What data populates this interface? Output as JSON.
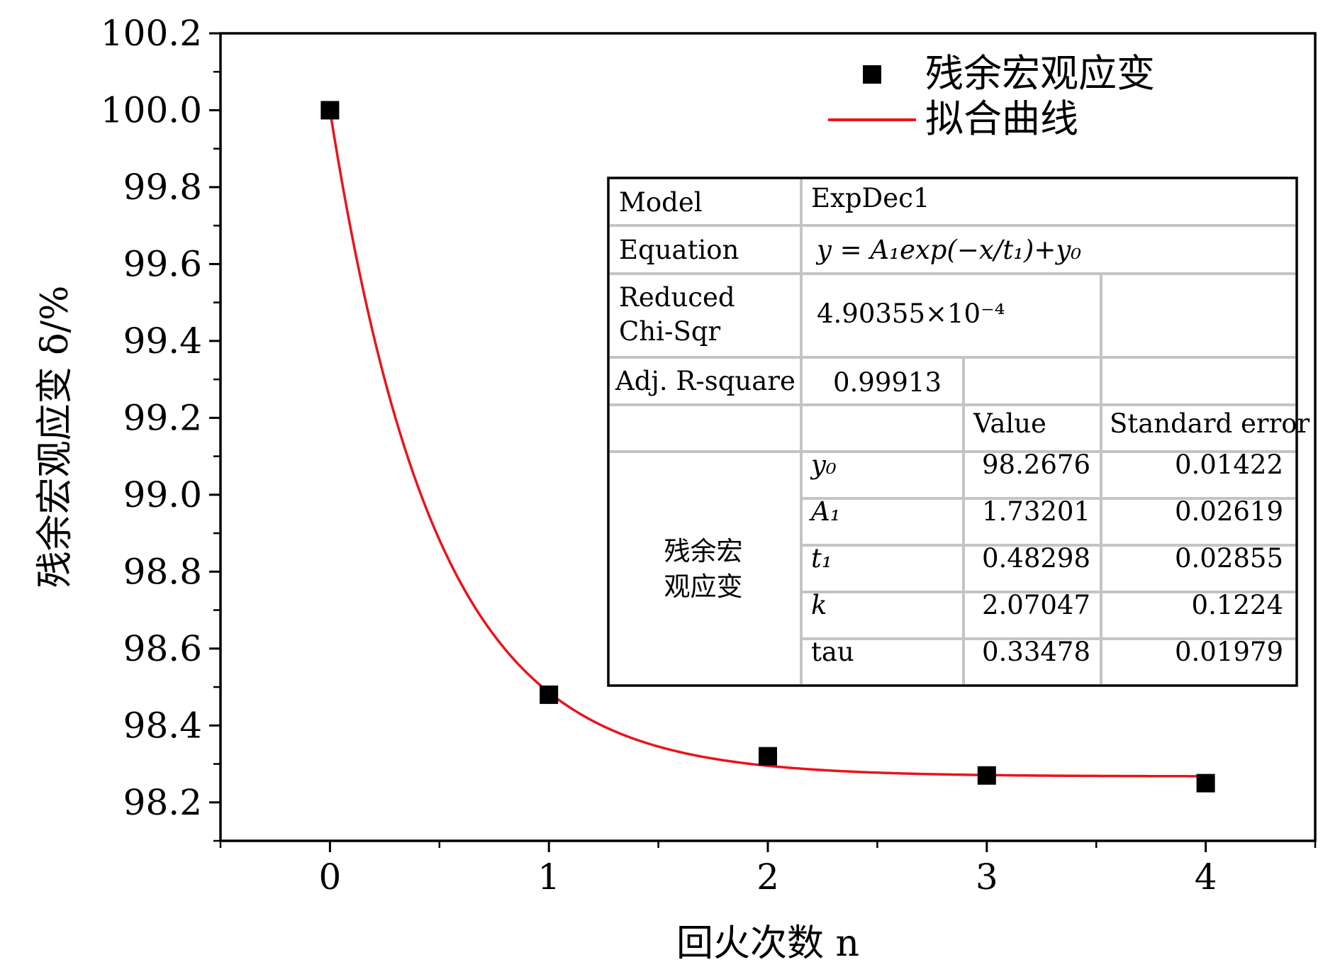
{
  "chart_data": {
    "type": "scatter",
    "xlabel": "回火次数 n",
    "ylabel": "残余宏观应变 δ/%",
    "xlim": [
      -0.5,
      4.5
    ],
    "ylim": [
      98.1,
      100.2
    ],
    "x_ticks": [
      "0",
      "1",
      "2",
      "3",
      "4"
    ],
    "y_ticks": [
      "98.2",
      "98.4",
      "98.6",
      "98.8",
      "99.0",
      "99.2",
      "99.4",
      "99.6",
      "99.8",
      "100.0",
      "100.2"
    ],
    "grid": false,
    "legend_position": "top-right",
    "series": [
      {
        "name": "残余宏观应变",
        "kind": "scatter",
        "color": "#000000",
        "x": [
          0,
          1,
          2,
          3,
          4
        ],
        "y": [
          100.0,
          98.48,
          98.32,
          98.27,
          98.25
        ]
      },
      {
        "name": "拟合曲线",
        "kind": "fit-line",
        "color": "#e8141b",
        "fit": {
          "A1": 1.73201,
          "t1": 0.48298,
          "y0": 98.2676,
          "x_range": [
            0,
            4
          ]
        }
      }
    ],
    "fit_table": {
      "model_label": "Model",
      "model_value": "ExpDec1",
      "equation_label": "Equation",
      "equation_value": "y = A₁exp(−x/t₁)+y₀",
      "chisq_label_1": "Reduced",
      "chisq_label_2": "Chi-Sqr",
      "chisq_value": "4.90355×10⁻⁴",
      "adjr_label": "Adj. R-square",
      "adjr_value": "0.99913",
      "col_value": "Value",
      "col_error": "Standard error",
      "group_label_1": "残余宏",
      "group_label_2": "观应变",
      "params": [
        {
          "name": "y₀",
          "value": "98.2676",
          "error": "0.01422"
        },
        {
          "name": "A₁",
          "value": "1.73201",
          "error": "0.02619"
        },
        {
          "name": "t₁",
          "value": "0.48298",
          "error": "0.02855"
        },
        {
          "name": "k",
          "value": "2.07047",
          "error": "0.1224"
        },
        {
          "name": "tau",
          "value": "0.33478",
          "error": "0.01979"
        }
      ]
    }
  }
}
